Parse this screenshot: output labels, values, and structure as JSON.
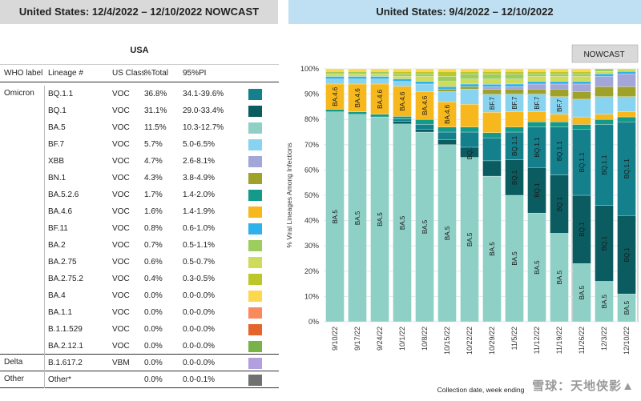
{
  "headers": {
    "left": "United States: 12/4/2022 – 12/10/2022 NOWCAST",
    "right": "United States: 9/4/2022 – 12/10/2022"
  },
  "table": {
    "region_title": "USA",
    "columns": [
      "WHO label",
      "Lineage #",
      "US Class",
      "%Total",
      "95%PI"
    ],
    "groups": [
      "Omicron",
      "Delta",
      "Other"
    ],
    "rows": [
      {
        "lineage": "BQ.1.1",
        "class": "VOC",
        "total": "36.8%",
        "pi": "34.1-39.6%",
        "color": "#13808c"
      },
      {
        "lineage": "BQ.1",
        "class": "VOC",
        "total": "31.1%",
        "pi": "29.0-33.4%",
        "color": "#0b5c61"
      },
      {
        "lineage": "BA.5",
        "class": "VOC",
        "total": "11.5%",
        "pi": "10.3-12.7%",
        "color": "#8ecfc6"
      },
      {
        "lineage": "BF.7",
        "class": "VOC",
        "total": "5.7%",
        "pi": "5.0-6.5%",
        "color": "#87d3f0"
      },
      {
        "lineage": "XBB",
        "class": "VOC",
        "total": "4.7%",
        "pi": "2.6-8.1%",
        "color": "#a3a6d8"
      },
      {
        "lineage": "BN.1",
        "class": "VOC",
        "total": "4.3%",
        "pi": "3.8-4.9%",
        "color": "#9ea22a"
      },
      {
        "lineage": "BA.5.2.6",
        "class": "VOC",
        "total": "1.7%",
        "pi": "1.4-2.0%",
        "color": "#139a8a"
      },
      {
        "lineage": "BA.4.6",
        "class": "VOC",
        "total": "1.6%",
        "pi": "1.4-1.9%",
        "color": "#f6b81c"
      },
      {
        "lineage": "BF.11",
        "class": "VOC",
        "total": "0.8%",
        "pi": "0.6-1.0%",
        "color": "#2fb2ea"
      },
      {
        "lineage": "BA.2",
        "class": "VOC",
        "total": "0.7%",
        "pi": "0.5-1.1%",
        "color": "#9ccd5e"
      },
      {
        "lineage": "BA.2.75",
        "class": "VOC",
        "total": "0.6%",
        "pi": "0.5-0.7%",
        "color": "#cfdb5a"
      },
      {
        "lineage": "BA.2.75.2",
        "class": "VOC",
        "total": "0.4%",
        "pi": "0.3-0.5%",
        "color": "#bcc72b"
      },
      {
        "lineage": "BA.4",
        "class": "VOC",
        "total": "0.0%",
        "pi": "0.0-0.0%",
        "color": "#fbd84e"
      },
      {
        "lineage": "BA.1.1",
        "class": "VOC",
        "total": "0.0%",
        "pi": "0.0-0.0%",
        "color": "#f88a5e"
      },
      {
        "lineage": "B.1.1.529",
        "class": "VOC",
        "total": "0.0%",
        "pi": "0.0-0.0%",
        "color": "#e4642c"
      },
      {
        "lineage": "BA.2.12.1",
        "class": "VOC",
        "total": "0.0%",
        "pi": "0.0-0.0%",
        "color": "#78b34a"
      },
      {
        "lineage": "B.1.617.2",
        "class": "VBM",
        "total": "0.0%",
        "pi": "0.0-0.0%",
        "color": "#b39fe0"
      },
      {
        "lineage": "Other*",
        "class": "",
        "total": "0.0%",
        "pi": "0.0-0.1%",
        "color": "#707070"
      }
    ]
  },
  "chart_data": {
    "type": "bar",
    "stacked": true,
    "title": "United States: 9/4/2022 – 12/10/2022",
    "nowcast_label": "NOWCAST",
    "nowcast_categories": [
      "11/26/22",
      "12/3/22",
      "12/10/22"
    ],
    "ylabel": "% Viral Lineages Among Infections",
    "xlabel": "Collection date, week ending",
    "ylim": [
      0,
      100
    ],
    "yticks": [
      "0%",
      "10%",
      "20%",
      "30%",
      "40%",
      "50%",
      "60%",
      "70%",
      "80%",
      "90%",
      "100%"
    ],
    "categories": [
      "9/10/22",
      "9/17/22",
      "9/24/22",
      "10/1/22",
      "10/8/22",
      "10/15/22",
      "10/22/22",
      "10/29/22",
      "11/5/22",
      "11/12/22",
      "11/19/22",
      "11/26/22",
      "12/3/22",
      "12/10/22"
    ],
    "series": [
      {
        "name": "BA.5",
        "color": "#8ecfc6",
        "values": [
          83,
          82,
          81,
          79,
          75,
          70,
          65,
          57,
          50,
          43,
          35,
          23,
          16,
          11
        ]
      },
      {
        "name": "BQ.1",
        "color": "#0b5c61",
        "values": [
          0,
          0,
          0,
          1,
          1,
          2,
          4,
          6,
          14,
          18,
          23,
          27,
          30,
          31
        ]
      },
      {
        "name": "BQ.1.1",
        "color": "#13808c",
        "values": [
          0,
          0,
          0,
          1,
          2,
          3,
          6,
          9,
          11,
          16,
          19,
          26,
          32,
          37
        ]
      },
      {
        "name": "BA.5.2.6",
        "color": "#139a8a",
        "values": [
          1,
          1,
          1,
          1,
          2,
          2,
          2,
          2,
          2,
          2,
          2,
          2,
          2,
          2
        ]
      },
      {
        "name": "BA.4.6",
        "color": "#f6b81c",
        "values": [
          10,
          11,
          12,
          12,
          11,
          10,
          9,
          8,
          6,
          4,
          3,
          3,
          2,
          2
        ]
      },
      {
        "name": "BF.7",
        "color": "#87d3f0",
        "values": [
          2,
          2,
          2,
          2,
          3,
          4,
          6,
          7,
          7,
          7,
          7,
          7,
          7,
          6
        ]
      },
      {
        "name": "BN.1",
        "color": "#9ea22a",
        "values": [
          0,
          0,
          0,
          0,
          0,
          1,
          1,
          2,
          2,
          2,
          3,
          3,
          4,
          4
        ]
      },
      {
        "name": "XBB",
        "color": "#a3a6d8",
        "values": [
          0,
          0,
          0,
          0,
          0,
          0,
          0,
          1,
          1,
          2,
          2,
          3,
          4,
          5
        ]
      },
      {
        "name": "BF.11",
        "color": "#2fb2ea",
        "values": [
          1,
          1,
          1,
          1,
          1,
          1,
          1,
          1,
          1,
          1,
          1,
          1,
          1,
          1
        ]
      },
      {
        "name": "BA.2.75",
        "color": "#cfdb5a",
        "values": [
          1,
          1,
          1,
          1,
          2,
          2,
          2,
          2,
          2,
          2,
          2,
          2,
          1,
          1
        ]
      },
      {
        "name": "BA.2",
        "color": "#9ccd5e",
        "values": [
          1,
          1,
          1,
          1,
          1,
          2,
          2,
          2,
          2,
          1,
          1,
          1,
          1,
          0
        ]
      },
      {
        "name": "BA.2.75.2",
        "color": "#bcc72b",
        "values": [
          0,
          0,
          0,
          1,
          1,
          2,
          1,
          1,
          1,
          1,
          1,
          1,
          0,
          0
        ]
      },
      {
        "name": "BA.4",
        "color": "#fbd84e",
        "values": [
          1,
          1,
          1,
          1,
          1,
          1,
          1,
          1,
          1,
          1,
          1,
          1,
          0,
          0
        ]
      }
    ],
    "segment_labels": [
      {
        "series": "BA.5",
        "categories": "all",
        "text": "BA.5"
      },
      {
        "series": "BA.4.6",
        "categories": [
          "9/10/22",
          "9/17/22",
          "9/24/22",
          "10/1/22",
          "10/8/22",
          "10/15/22"
        ],
        "text": "BA.4.6"
      },
      {
        "series": "BQ.1",
        "categories": [
          "10/22/22",
          "11/5/22",
          "11/12/22",
          "11/19/22",
          "11/26/22",
          "12/3/22",
          "12/10/22"
        ],
        "text": "BQ.1"
      },
      {
        "series": "BQ.1.1",
        "categories": [
          "11/5/22",
          "11/12/22",
          "11/19/22",
          "11/26/22",
          "12/3/22",
          "12/10/22"
        ],
        "text": "BQ.1.1"
      },
      {
        "series": "BF.7",
        "categories": [
          "10/29/22",
          "11/5/22",
          "11/12/22",
          "11/19/22"
        ],
        "text": "BF.7"
      }
    ]
  },
  "watermark": "雪球：天地侠影▲"
}
